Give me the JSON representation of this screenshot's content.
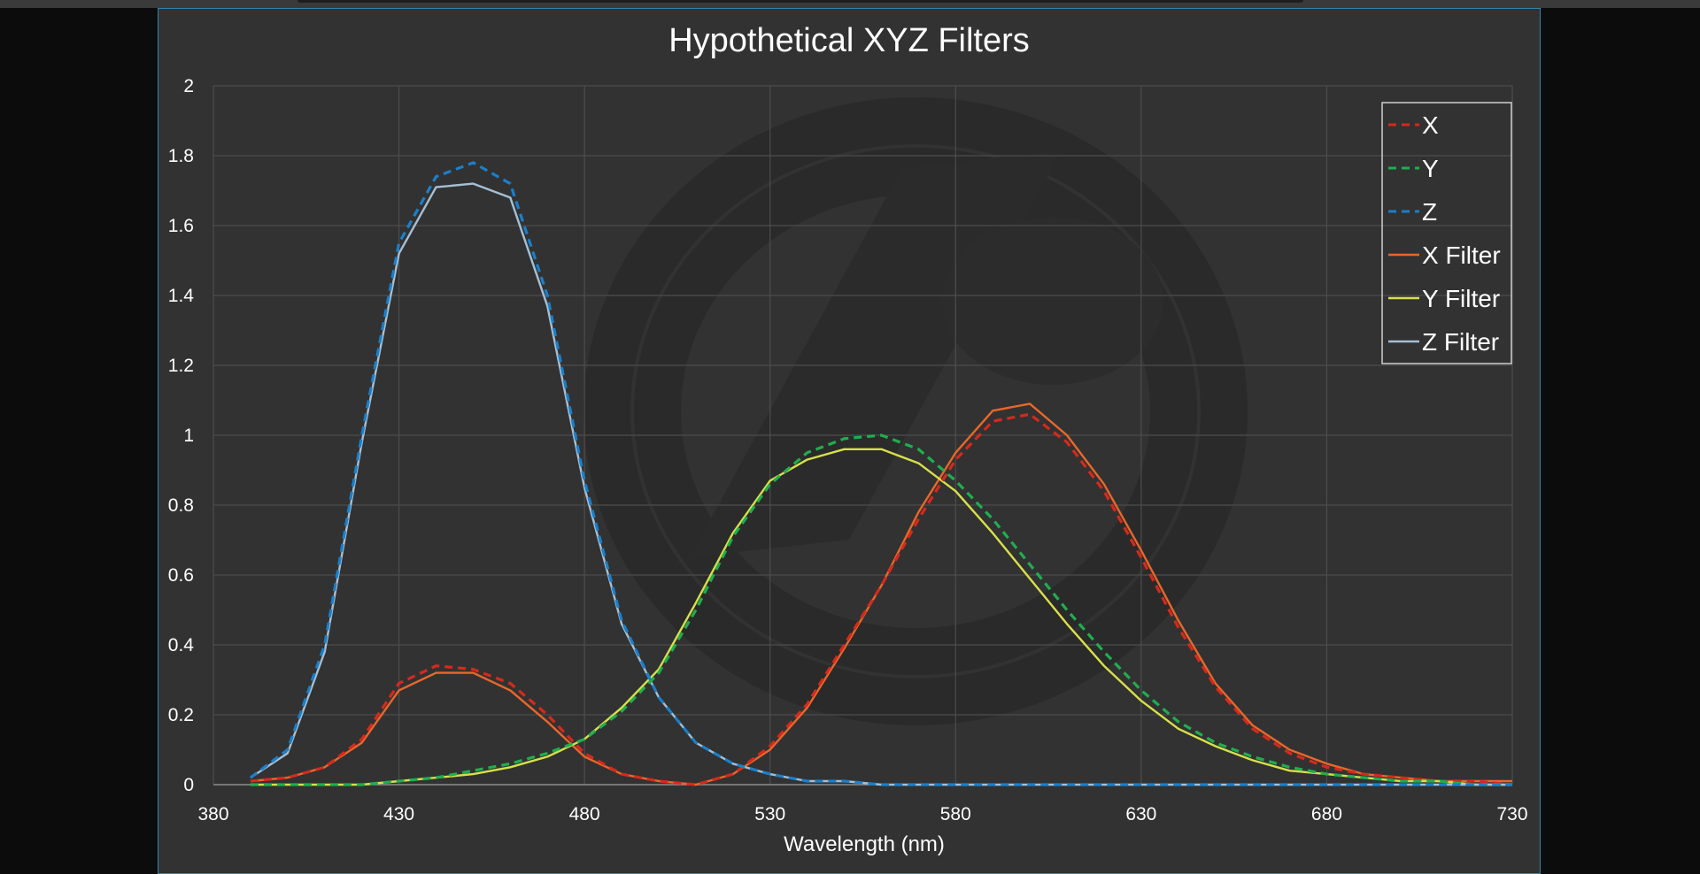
{
  "chart_data": {
    "type": "line",
    "title": "Hypothetical XYZ Filters",
    "xlabel": "Wavelength (nm)",
    "ylabel": "",
    "xlim": [
      380,
      730
    ],
    "ylim": [
      0,
      2
    ],
    "grid": true,
    "legend_position": "top-right",
    "x_ticks": [
      "380",
      "430",
      "480",
      "530",
      "580",
      "630",
      "680",
      "730"
    ],
    "y_ticks": [
      "0",
      "0.2",
      "0.4",
      "0.6",
      "0.8",
      "1",
      "1.2",
      "1.4",
      "1.6",
      "1.8",
      "2"
    ],
    "x": [
      390,
      400,
      410,
      420,
      430,
      440,
      450,
      460,
      470,
      480,
      490,
      500,
      510,
      520,
      530,
      540,
      550,
      560,
      570,
      580,
      590,
      600,
      610,
      620,
      630,
      640,
      650,
      660,
      670,
      680,
      690,
      700,
      710,
      720,
      730
    ],
    "series": [
      {
        "name": "X",
        "style": "dashed",
        "color": "#d42a1e",
        "values": [
          0.01,
          0.02,
          0.05,
          0.13,
          0.29,
          0.34,
          0.33,
          0.29,
          0.2,
          0.09,
          0.03,
          0.01,
          0.0,
          0.03,
          0.11,
          0.23,
          0.4,
          0.57,
          0.76,
          0.93,
          1.04,
          1.06,
          0.98,
          0.84,
          0.65,
          0.45,
          0.28,
          0.16,
          0.09,
          0.05,
          0.03,
          0.02,
          0.01,
          0.01,
          0.0
        ]
      },
      {
        "name": "Y",
        "style": "dashed",
        "color": "#1fae4f",
        "values": [
          0.0,
          0.0,
          0.0,
          0.0,
          0.01,
          0.02,
          0.04,
          0.06,
          0.09,
          0.13,
          0.21,
          0.32,
          0.5,
          0.71,
          0.86,
          0.95,
          0.99,
          1.0,
          0.96,
          0.87,
          0.76,
          0.63,
          0.5,
          0.38,
          0.27,
          0.18,
          0.12,
          0.08,
          0.05,
          0.03,
          0.02,
          0.01,
          0.01,
          0.0,
          0.0
        ]
      },
      {
        "name": "Z",
        "style": "dashed",
        "color": "#1b7fc9",
        "values": [
          0.02,
          0.1,
          0.4,
          1.0,
          1.55,
          1.74,
          1.78,
          1.72,
          1.4,
          0.87,
          0.47,
          0.25,
          0.12,
          0.06,
          0.03,
          0.01,
          0.01,
          0.0,
          0.0,
          0.0,
          0.0,
          0.0,
          0.0,
          0.0,
          0.0,
          0.0,
          0.0,
          0.0,
          0.0,
          0.0,
          0.0,
          0.0,
          0.0,
          0.0,
          0.0
        ]
      },
      {
        "name": "X Filter",
        "style": "solid",
        "color": "#e8672a",
        "values": [
          0.01,
          0.02,
          0.05,
          0.12,
          0.27,
          0.32,
          0.32,
          0.27,
          0.18,
          0.08,
          0.03,
          0.01,
          0.0,
          0.03,
          0.1,
          0.22,
          0.39,
          0.57,
          0.78,
          0.95,
          1.07,
          1.09,
          1.0,
          0.86,
          0.67,
          0.47,
          0.29,
          0.17,
          0.1,
          0.06,
          0.03,
          0.02,
          0.01,
          0.01,
          0.01
        ]
      },
      {
        "name": "Y Filter",
        "style": "solid",
        "color": "#d7e04a",
        "values": [
          0.0,
          0.0,
          0.0,
          0.0,
          0.01,
          0.02,
          0.03,
          0.05,
          0.08,
          0.13,
          0.22,
          0.33,
          0.52,
          0.72,
          0.87,
          0.93,
          0.96,
          0.96,
          0.92,
          0.84,
          0.72,
          0.59,
          0.46,
          0.34,
          0.24,
          0.16,
          0.11,
          0.07,
          0.04,
          0.03,
          0.02,
          0.01,
          0.01,
          0.0,
          0.0
        ]
      },
      {
        "name": "Z Filter",
        "style": "solid",
        "color": "#a6bfd4",
        "values": [
          0.02,
          0.09,
          0.38,
          0.98,
          1.52,
          1.71,
          1.72,
          1.68,
          1.37,
          0.85,
          0.46,
          0.25,
          0.12,
          0.06,
          0.03,
          0.01,
          0.01,
          0.0,
          0.0,
          0.0,
          0.0,
          0.0,
          0.0,
          0.0,
          0.0,
          0.0,
          0.0,
          0.0,
          0.0,
          0.0,
          0.0,
          0.0,
          0.0,
          0.0,
          0.0
        ]
      }
    ]
  }
}
